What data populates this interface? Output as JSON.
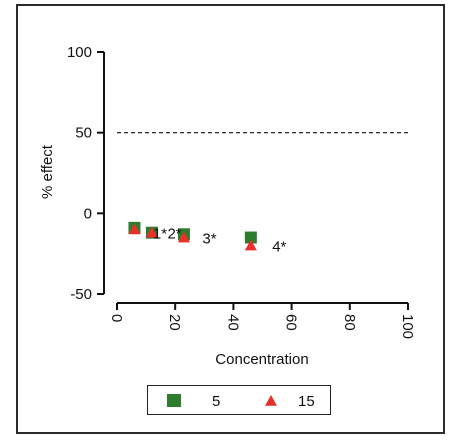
{
  "chart_data": {
    "type": "scatter",
    "xlabel": "Concentration",
    "ylabel": "% effect",
    "xlim": [
      0,
      100
    ],
    "ylim": [
      -50,
      100
    ],
    "xticks": [
      "0",
      "20",
      "40",
      "60",
      "80",
      "100"
    ],
    "yticks": [
      "100",
      "50",
      "0",
      "-50"
    ],
    "reference_line": {
      "y": 50,
      "style": "dashed"
    },
    "grid": false,
    "legend": "bottom",
    "series": [
      {
        "name": "5",
        "marker": "square",
        "color": "#2e7d2e",
        "points": [
          {
            "x": 6,
            "y": -9
          },
          {
            "x": 12,
            "y": -12
          },
          {
            "x": 23,
            "y": -13
          },
          {
            "x": 46,
            "y": -15
          }
        ]
      },
      {
        "name": "15",
        "marker": "triangle",
        "color": "#e8302a",
        "points": [
          {
            "x": 6,
            "y": -10
          },
          {
            "x": 12,
            "y": -12
          },
          {
            "x": 23,
            "y": -15
          },
          {
            "x": 46,
            "y": -20
          }
        ]
      }
    ],
    "annotations": [
      {
        "text": "1*",
        "x": 12,
        "y": -12
      },
      {
        "text": "2*",
        "x": 17,
        "y": -12
      },
      {
        "text": "3*",
        "x": 29,
        "y": -15
      },
      {
        "text": "4*",
        "x": 53,
        "y": -20
      }
    ]
  }
}
